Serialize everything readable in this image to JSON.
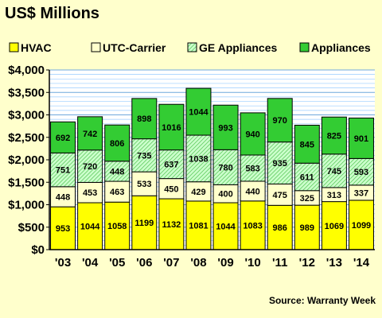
{
  "chart_data": {
    "type": "bar",
    "stacked": true,
    "title": "US$ Millions",
    "categories": [
      "'03",
      "'04",
      "'05",
      "'06",
      "'07",
      "'08",
      "'09",
      "'10",
      "'11",
      "'12",
      "'13",
      "'14"
    ],
    "series": [
      {
        "name": "HVAC",
        "color": "#ffff00",
        "pattern": "solid",
        "values": [
          953,
          1044,
          1058,
          1199,
          1132,
          1081,
          1044,
          1083,
          986,
          989,
          1069,
          1099
        ]
      },
      {
        "name": "UTC-Carrier",
        "color": "#ffffcc",
        "pattern": "solid",
        "values": [
          448,
          453,
          463,
          533,
          450,
          429,
          400,
          440,
          475,
          325,
          313,
          337
        ]
      },
      {
        "name": "GE Appliances",
        "color": "#ccffcc",
        "pattern": "diagonal-hatch",
        "values": [
          751,
          720,
          448,
          735,
          637,
          1038,
          780,
          583,
          935,
          611,
          745,
          593
        ]
      },
      {
        "name": "Appliances",
        "color": "#33cc33",
        "pattern": "solid",
        "values": [
          692,
          742,
          806,
          898,
          1016,
          1044,
          993,
          940,
          970,
          845,
          825,
          901
        ]
      }
    ],
    "ylim": [
      0,
      4000
    ],
    "yticks": [
      0,
      500,
      1000,
      1500,
      2000,
      2500,
      3000,
      3500,
      4000
    ],
    "ytick_labels": [
      "$0",
      "$500",
      "$1,000",
      "$1,500",
      "$2,000",
      "$2,500",
      "$3,000",
      "$3,500",
      "$4,000"
    ],
    "grid": true,
    "legend_position": "top",
    "source": "Source: Warranty Week",
    "plot_background": "#ffffff",
    "grid_color": "#99ccff",
    "page_background": "#ffffcc"
  }
}
